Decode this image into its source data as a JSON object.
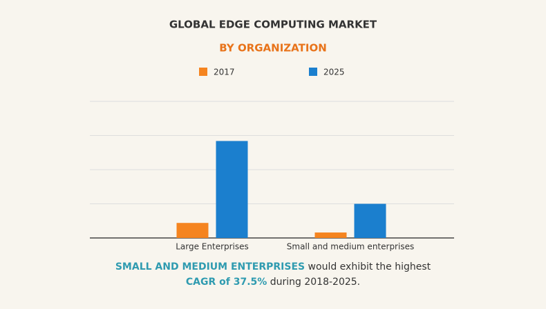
{
  "chart_data": {
    "type": "bar",
    "title": "GLOBAL EDGE COMPUTING MARKET",
    "subtitle": "BY ORGANIZATION",
    "categories": [
      "Large Enterprises",
      "Small and medium enterprises"
    ],
    "series": [
      {
        "name": "2017",
        "color": "#f5841f",
        "values": [
          0.44,
          0.16
        ]
      },
      {
        "name": "2025",
        "color": "#1b7fce",
        "values": [
          2.84,
          1.0
        ]
      }
    ],
    "ylim": [
      0,
      4
    ],
    "yticks": [
      0,
      1,
      2,
      3,
      4
    ],
    "grid": true,
    "legend": "top",
    "annotation": {
      "highlight_color": "#2f9bb0",
      "lines": [
        [
          {
            "text": "SMALL AND MEDIUM ENTERPRISES",
            "highlight": true
          },
          {
            "text": " would exhibit the highest",
            "highlight": false
          }
        ],
        [
          {
            "text": "CAGR of 37.5%",
            "highlight": true
          },
          {
            "text": " during 2018-2025.",
            "highlight": false
          }
        ]
      ]
    }
  }
}
